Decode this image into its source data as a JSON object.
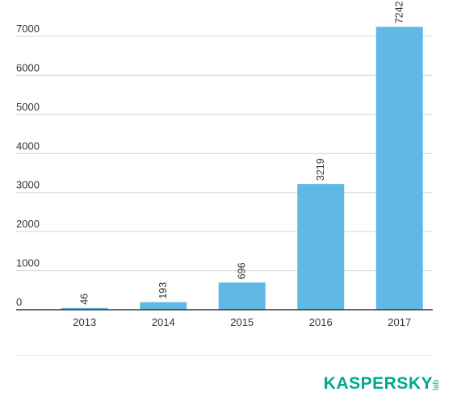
{
  "chart_data": {
    "type": "bar",
    "categories": [
      "2013",
      "2014",
      "2015",
      "2016",
      "2017"
    ],
    "values": [
      46,
      193,
      696,
      3219,
      7242
    ],
    "ylim": [
      0,
      7000
    ],
    "yticks": [
      0,
      1000,
      2000,
      3000,
      4000,
      5000,
      6000,
      7000
    ],
    "grid": true,
    "bar_color": "#60b8e4",
    "title": "",
    "xlabel": "",
    "ylabel": ""
  },
  "branding": {
    "logo_word": "KASPERSKY",
    "logo_sub": "lab",
    "logo_color": "#00a88e"
  }
}
